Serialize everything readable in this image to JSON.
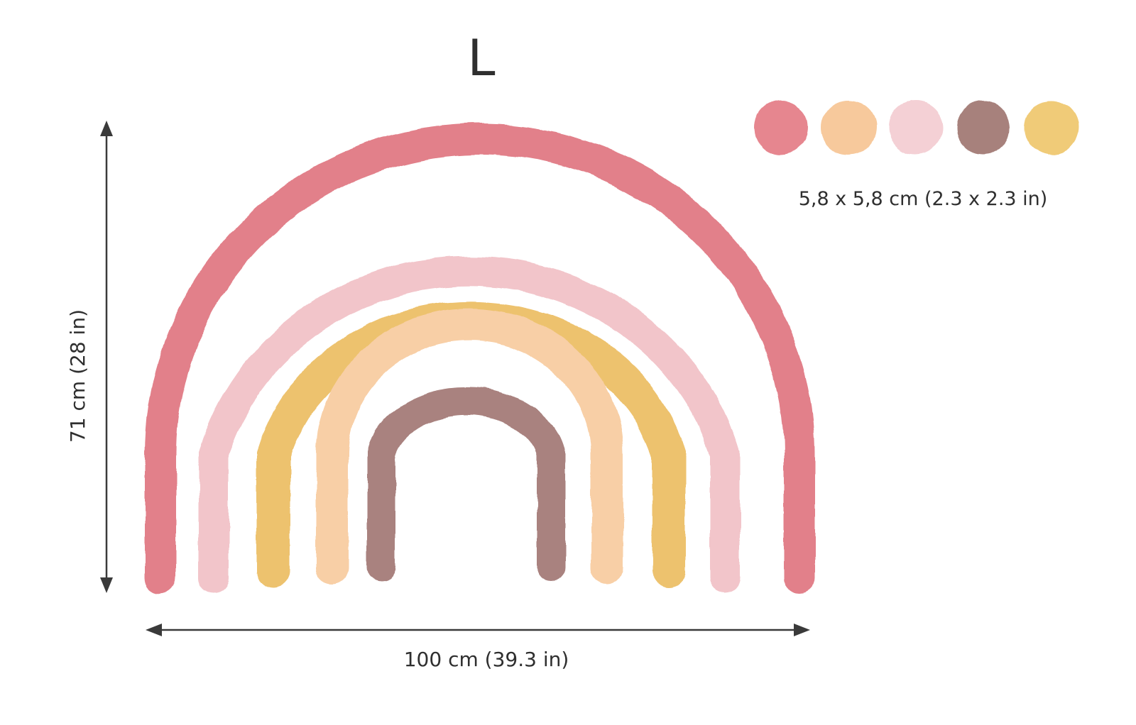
{
  "size_label": "L",
  "height_label": "71 cm (28 in)",
  "width_label": "100 cm (39.3 in)",
  "dot_size_label": "5,8 x 5,8 cm (2.3 x 2.3 in)",
  "colors": {
    "outer": "#E2808A",
    "second": "#F2C5CA",
    "third": "#EDC26E",
    "fourth": "#F8CFA6",
    "inner": "#A9827F",
    "dot_1": "#E6868F",
    "dot_2": "#F7C99C",
    "dot_3": "#F4D0D5",
    "dot_4": "#A7817B",
    "dot_5": "#F0CB78",
    "text": "#2F2F2F"
  }
}
